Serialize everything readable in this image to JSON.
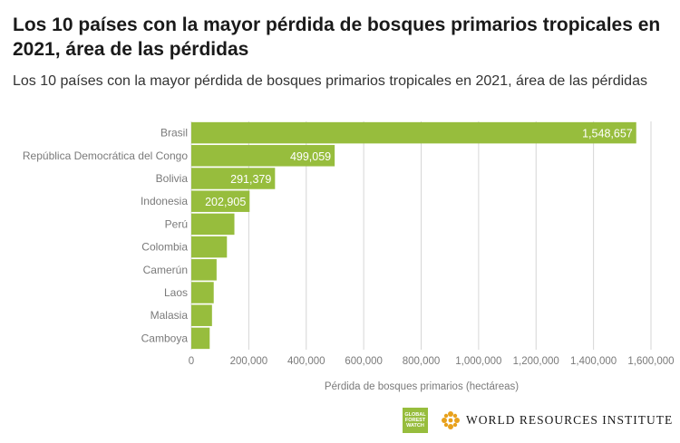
{
  "title": "Los 10 países con la mayor pérdida de bosques primarios tropicales en 2021, área de las pérdidas",
  "subtitle": "Los 10 países con la mayor pérdida de bosques primarios tropicales en 2021, área de las pérdidas",
  "logos": {
    "gfw_line1": "GLOBAL",
    "gfw_line2": "FOREST",
    "gfw_line3": "WATCH",
    "wri": "WORLD RESOURCES INSTITUTE"
  },
  "colors": {
    "bar": "#97bd3d",
    "grid": "#d6d6d6",
    "text": "#7a7a7a"
  },
  "chart_data": {
    "type": "bar",
    "orientation": "horizontal",
    "title": "Los 10 países con la mayor pérdida de bosques primarios tropicales en 2021, área de las pérdidas",
    "xlabel": "Pérdida de bosques primarios (hectáreas)",
    "ylabel": "",
    "categories": [
      "Brasil",
      "República Democrática del Congo",
      "Bolivia",
      "Indonesia",
      "Perú",
      "Colombia",
      "Camerún",
      "Laos",
      "Malasia",
      "Camboya"
    ],
    "values": [
      1548657,
      499059,
      291379,
      202905,
      150000,
      124000,
      88000,
      78000,
      72000,
      64000
    ],
    "data_labels": [
      "1,548,657",
      "499,059",
      "291,379",
      "202,905",
      "",
      "",
      "",
      "",
      "",
      ""
    ],
    "xlim": [
      0,
      1600000
    ],
    "xticks": [
      0,
      200000,
      400000,
      600000,
      800000,
      1000000,
      1200000,
      1400000,
      1600000
    ],
    "xtick_labels": [
      "0",
      "200,000",
      "400,000",
      "600,000",
      "800,000",
      "1,000,000",
      "1,200,000",
      "1,400,000",
      "1,600,000"
    ],
    "grid": true,
    "legend": "none"
  }
}
